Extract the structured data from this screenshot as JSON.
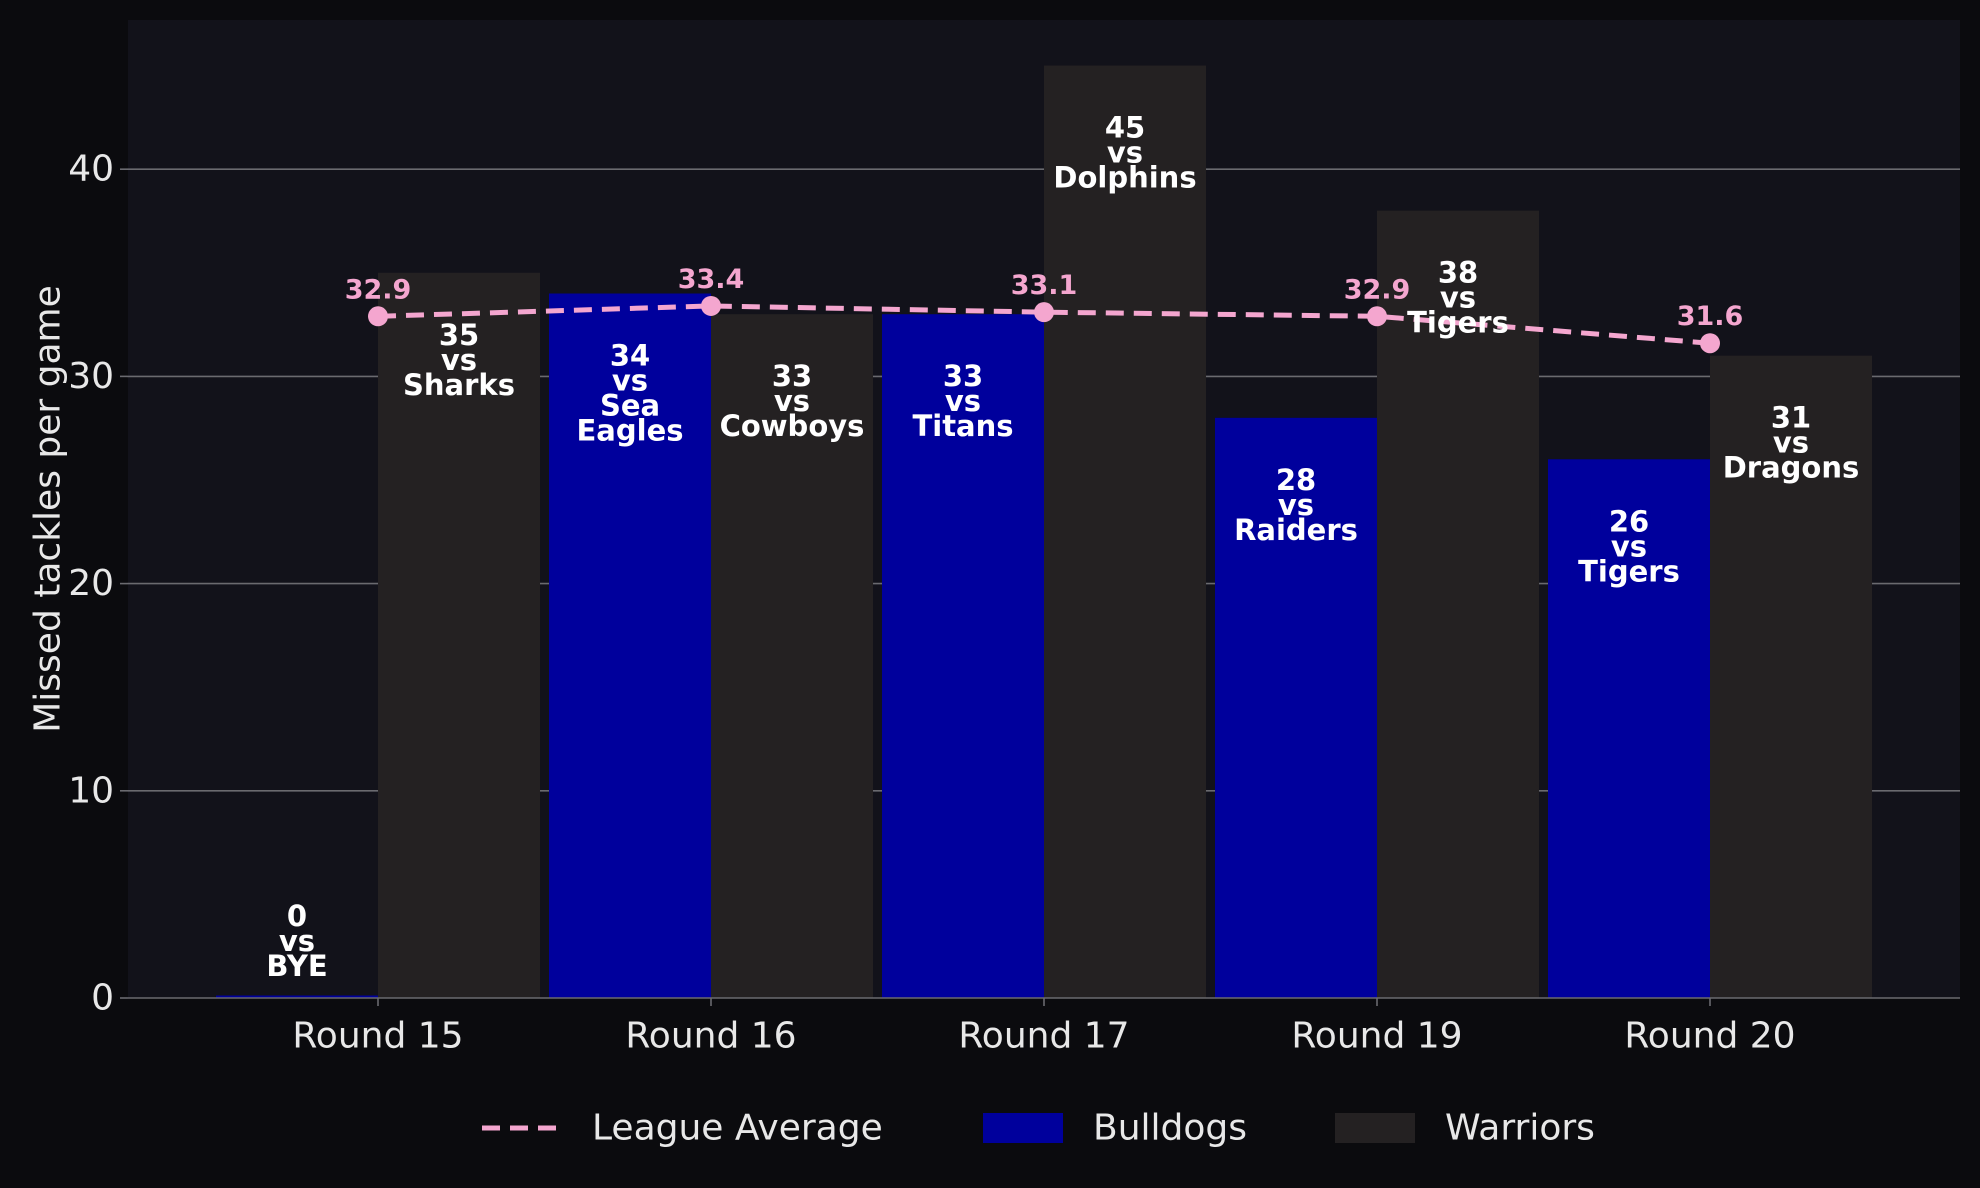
{
  "chart_data": {
    "type": "bar",
    "ylabel": "Missed tackles per game",
    "ylim": [
      0,
      47.2
    ],
    "yticks": [
      0,
      10,
      20,
      30,
      40
    ],
    "grid": "y",
    "categories": [
      "Round 15",
      "Round 16",
      "Round 17",
      "Round 19",
      "Round 20"
    ],
    "series": [
      {
        "name": "Bulldogs",
        "color": "#00009c",
        "values": [
          0,
          34,
          33,
          28,
          26
        ],
        "labels": [
          [
            "0",
            "vs",
            "BYE"
          ],
          [
            "34",
            "vs",
            "Sea",
            "Eagles"
          ],
          [
            "33",
            "vs",
            "Titans"
          ],
          [
            "28",
            "vs",
            "Raiders"
          ],
          [
            "26",
            "vs",
            "Tigers"
          ]
        ]
      },
      {
        "name": "Warriors",
        "color": "#242122",
        "values": [
          35,
          33,
          45,
          38,
          31
        ],
        "labels": [
          [
            "35",
            "vs",
            "Sharks"
          ],
          [
            "33",
            "vs",
            "Cowboys"
          ],
          [
            "45",
            "vs",
            "Dolphins"
          ],
          [
            "38",
            "vs",
            "Tigers"
          ],
          [
            "31",
            "vs",
            "Dragons"
          ]
        ]
      }
    ],
    "line": {
      "name": "League Average",
      "color": "#f4a6cf",
      "style": "dashed",
      "values": [
        32.9,
        33.4,
        33.1,
        32.9,
        31.6
      ],
      "labels": [
        "32.9",
        "33.4",
        "33.1",
        "32.9",
        "31.6"
      ]
    },
    "legend": {
      "placement": "bottom-center",
      "entries": [
        "League Average",
        "Bulldogs",
        "Warriors"
      ]
    },
    "colors": {
      "background": "#0b0b0e",
      "plot_background": "#12121a",
      "grid": "#6a6a6f",
      "text": "#e8e8e8",
      "bar_label": "#ffffff"
    }
  }
}
